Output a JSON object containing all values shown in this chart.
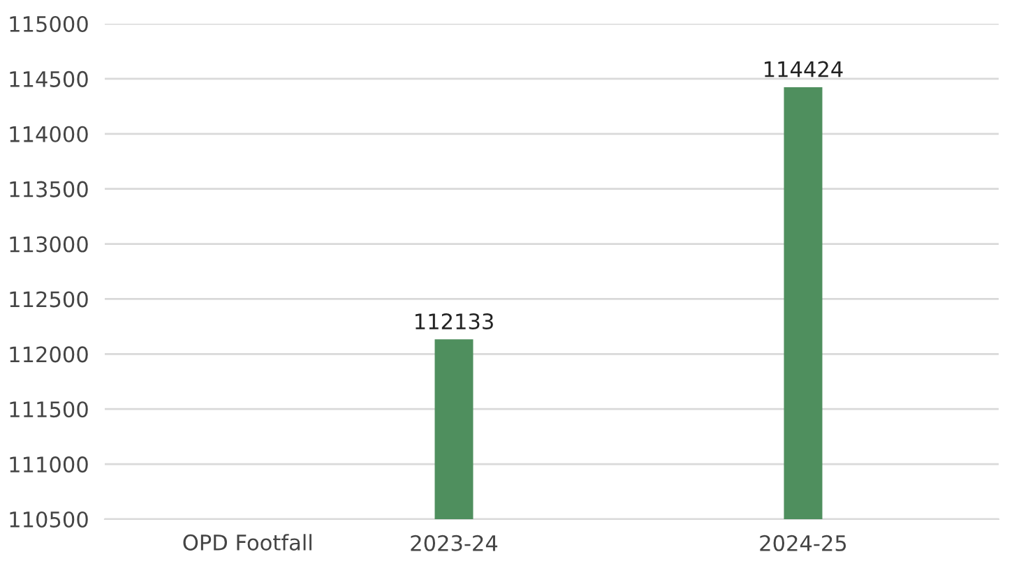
{
  "chart_data": {
    "type": "bar",
    "xlabel": "OPD Footfall",
    "categories": [
      "2023-24",
      "2024-25"
    ],
    "values": [
      112133,
      114424
    ],
    "color": "#4f8f5e",
    "ylim": [
      110500,
      115000
    ],
    "yticks": [
      110500,
      111000,
      111500,
      112000,
      112500,
      113000,
      113500,
      114000,
      114500,
      115000
    ],
    "grid": "y",
    "data_labels": true,
    "legend": false
  }
}
